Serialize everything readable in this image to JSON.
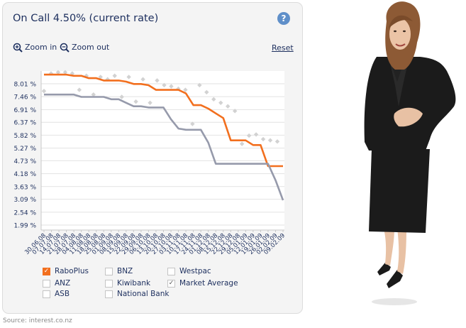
{
  "panel": {
    "title": "On Call 4.50% (current rate)",
    "help_icon": "?",
    "zoom_in_label": "Zoom in",
    "zoom_out_label": "Zoom out",
    "reset_label": "Reset",
    "source_text": "Source: interest.co.nz"
  },
  "colors": {
    "raboplus": "#f26f1e",
    "market_average": "#969aab",
    "other_markers": "#d2d2d2",
    "title": "#1d2f5e"
  },
  "legend": [
    {
      "label": "RaboPlus",
      "checked": true,
      "color": "#f26f1e"
    },
    {
      "label": "BNZ",
      "checked": false
    },
    {
      "label": "Westpac",
      "checked": false
    },
    {
      "label": "ANZ",
      "checked": false
    },
    {
      "label": "Kiwibank",
      "checked": false
    },
    {
      "label": "Market Average",
      "checked": true,
      "color": "#969aab"
    },
    {
      "label": "ASB",
      "checked": false
    },
    {
      "label": "National Bank",
      "checked": false
    }
  ],
  "chart_data": {
    "type": "line",
    "title": "On Call 4.50% (current rate)",
    "y_tick_labels": [
      "8.01 %",
      "7.46 %",
      "6.91 %",
      "6.37 %",
      "5.82 %",
      "5.27 %",
      "4.73 %",
      "4.18 %",
      "3.63 %",
      "3.09 %",
      "2.54 %",
      "1.99 %"
    ],
    "ylim": [
      1.99,
      8.5
    ],
    "x_tick_labels": [
      "30.06.08",
      "07.07.08",
      "14.07.08",
      "21.07.08",
      "28.07.08",
      "04.08.08",
      "11.08.08",
      "18.08.08",
      "25.08.08",
      "01.09.08",
      "08.09.08",
      "15.09.08",
      "22.09.08",
      "29.09.08",
      "06.10.08",
      "13.10.08",
      "20.10.08",
      "27.10.08",
      "03.11.08",
      "10.11.08",
      "17.11.08",
      "24.11.08",
      "01.12.08",
      "08.12.08",
      "15.12.08",
      "22.12.08",
      "29.12.08",
      "05.01.09",
      "12.01.09",
      "19.01.09",
      "26.01.09",
      "02.02.09",
      "09.02.09"
    ],
    "grid": true,
    "series": [
      {
        "name": "RaboPlus",
        "color": "#f26f1e",
        "values": [
          8.4,
          8.4,
          8.4,
          8.4,
          8.35,
          8.35,
          8.25,
          8.25,
          8.15,
          8.15,
          8.15,
          8.1,
          8.0,
          8.0,
          7.95,
          7.75,
          7.75,
          7.75,
          7.75,
          7.6,
          7.1,
          7.1,
          6.95,
          6.75,
          6.55,
          5.6,
          5.6,
          5.6,
          5.4,
          5.4,
          4.5,
          4.5,
          4.5
        ]
      },
      {
        "name": "Market Average",
        "color": "#969aab",
        "values": [
          7.55,
          7.55,
          7.55,
          7.55,
          7.55,
          7.45,
          7.45,
          7.45,
          7.45,
          7.35,
          7.35,
          7.2,
          7.05,
          7.05,
          7.0,
          7.0,
          7.0,
          6.5,
          6.1,
          6.05,
          6.05,
          6.05,
          5.5,
          4.6,
          4.6,
          4.6,
          4.6,
          4.6,
          4.6,
          4.6,
          4.6,
          3.9,
          3.05
        ]
      }
    ],
    "marker_values": [
      7.7,
      8.45,
      8.5,
      8.5,
      8.45,
      7.75,
      8.35,
      7.55,
      8.3,
      8.2,
      8.35,
      7.45,
      8.3,
      7.25,
      8.2,
      7.2,
      8.15,
      7.95,
      7.9,
      7.8,
      7.75,
      6.3,
      7.95,
      7.65,
      7.35,
      7.2,
      7.05,
      6.85,
      5.45,
      5.8,
      5.85,
      5.65,
      5.6,
      5.55
    ]
  }
}
